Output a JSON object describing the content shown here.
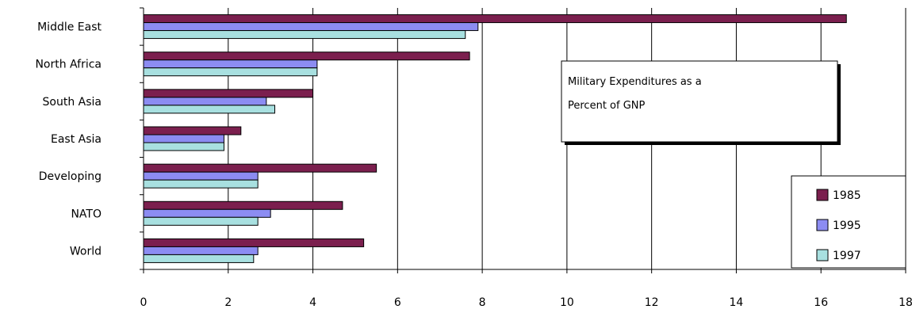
{
  "chart_data": {
    "type": "bar",
    "orientation": "horizontal",
    "title": "",
    "text_box": {
      "line1": "Military Expenditures as a",
      "line2": "Percent of GNP"
    },
    "categories": [
      "Middle East",
      "North Africa",
      "South Asia",
      "East Asia",
      "Developing",
      "NATO",
      "World"
    ],
    "series": [
      {
        "name": "1985",
        "color": "#7b1f4e",
        "values": [
          16.6,
          7.7,
          4.0,
          2.3,
          5.5,
          4.7,
          5.2
        ]
      },
      {
        "name": "1995",
        "color": "#8c8cf2",
        "values": [
          7.9,
          4.1,
          2.9,
          1.9,
          2.7,
          3.0,
          2.7
        ]
      },
      {
        "name": "1997",
        "color": "#a8e0e0",
        "values": [
          7.6,
          4.1,
          3.1,
          1.9,
          2.7,
          2.7,
          2.6
        ]
      }
    ],
    "xlim": [
      0,
      18
    ],
    "xticks": [
      "0",
      "2",
      "4",
      "6",
      "8",
      "10",
      "12",
      "14",
      "16",
      "18"
    ],
    "grid": "vertical",
    "legend_position": "bottom-right"
  }
}
